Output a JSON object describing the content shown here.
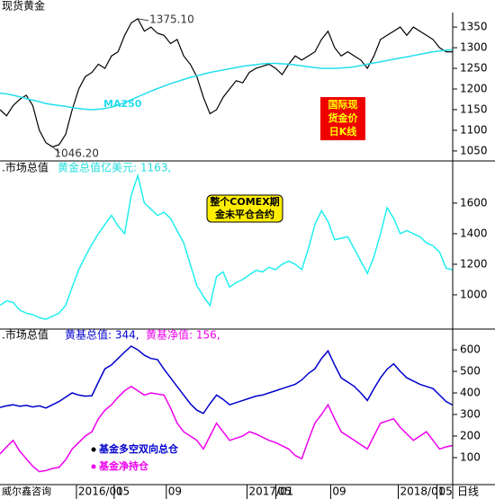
{
  "chart_data": [
    {
      "type": "line",
      "title": "现货黄金",
      "xlim": [
        0,
        138
      ],
      "ylim": [
        1028,
        1385
      ],
      "yticks": [
        1050,
        1100,
        1150,
        1200,
        1250,
        1300,
        1350
      ],
      "x": [
        0,
        2,
        4,
        6,
        8,
        10,
        12,
        14,
        16,
        18,
        20,
        22,
        24,
        26,
        28,
        30,
        32,
        34,
        36,
        38,
        40,
        42,
        44,
        46,
        48,
        50,
        52,
        54,
        56,
        58,
        60,
        62,
        64,
        66,
        68,
        70,
        72,
        74,
        76,
        78,
        80,
        82,
        84,
        86,
        88,
        90,
        92,
        94,
        96,
        98,
        100,
        102,
        104,
        106,
        108,
        110,
        112,
        114,
        116,
        118,
        120,
        122,
        124,
        126,
        128,
        130,
        132,
        134,
        136,
        138
      ],
      "series": [
        {
          "name": "现货黄金",
          "color": "#000000",
          "values": [
            1150,
            1135,
            1160,
            1175,
            1185,
            1160,
            1100,
            1070,
            1060,
            1065,
            1090,
            1150,
            1200,
            1230,
            1240,
            1260,
            1250,
            1280,
            1290,
            1330,
            1360,
            1370,
            1340,
            1350,
            1335,
            1330,
            1310,
            1320,
            1280,
            1260,
            1230,
            1180,
            1140,
            1150,
            1180,
            1200,
            1220,
            1215,
            1240,
            1250,
            1255,
            1260,
            1250,
            1235,
            1260,
            1280,
            1270,
            1280,
            1290,
            1320,
            1340,
            1300,
            1280,
            1290,
            1280,
            1270,
            1250,
            1280,
            1320,
            1330,
            1340,
            1350,
            1330,
            1350,
            1340,
            1330,
            1320,
            1300,
            1290,
            1290
          ]
        },
        {
          "name": "MA250",
          "color": "#22ddee",
          "values": [
            1190,
            1188,
            1185,
            1181,
            1177,
            1173,
            1169,
            1165,
            1162,
            1160,
            1158,
            1155,
            1153,
            1151,
            1150,
            1151,
            1153,
            1156,
            1161,
            1167,
            1174,
            1181,
            1188,
            1195,
            1201,
            1207,
            1213,
            1218,
            1223,
            1228,
            1232,
            1236,
            1240,
            1243,
            1246,
            1249,
            1252,
            1255,
            1257,
            1259,
            1261,
            1262,
            1262,
            1261,
            1260,
            1258,
            1256,
            1254,
            1252,
            1250,
            1250,
            1250,
            1251,
            1252,
            1254,
            1257,
            1260,
            1263,
            1266,
            1269,
            1272,
            1275,
            1278,
            1281,
            1284,
            1287,
            1290,
            1292,
            1294,
            1295
          ]
        }
      ],
      "annotations": [
        "1375.10",
        "1046.20"
      ],
      "box_text": [
        "国际现",
        "货金价",
        "日K线"
      ]
    },
    {
      "type": "line",
      "title": ".市场总值",
      "subtitle": "黄金总值亿美元: 1163,",
      "xlim": [
        0,
        138
      ],
      "ylim": [
        782,
        1870
      ],
      "yticks": [
        1000,
        1200,
        1400,
        1600
      ],
      "x": [
        0,
        2,
        4,
        6,
        8,
        10,
        12,
        14,
        16,
        18,
        20,
        22,
        24,
        26,
        28,
        30,
        32,
        34,
        36,
        38,
        40,
        42,
        44,
        46,
        48,
        50,
        52,
        54,
        56,
        58,
        60,
        62,
        64,
        66,
        68,
        70,
        72,
        74,
        76,
        78,
        80,
        82,
        84,
        86,
        88,
        90,
        92,
        94,
        96,
        98,
        100,
        102,
        104,
        106,
        108,
        110,
        112,
        114,
        116,
        118,
        120,
        122,
        124,
        126,
        128,
        130,
        132,
        134,
        136,
        138
      ],
      "series": [
        {
          "name": "黄金总值亿美元",
          "color": "#22eeee",
          "values": [
            930,
            960,
            950,
            900,
            880,
            870,
            850,
            840,
            860,
            880,
            930,
            1050,
            1165,
            1250,
            1330,
            1400,
            1460,
            1520,
            1450,
            1400,
            1650,
            1780,
            1600,
            1560,
            1520,
            1540,
            1500,
            1420,
            1340,
            1200,
            1060,
            990,
            930,
            1120,
            1150,
            1050,
            1080,
            1100,
            1130,
            1160,
            1150,
            1180,
            1165,
            1200,
            1220,
            1200,
            1165,
            1300,
            1460,
            1550,
            1480,
            1360,
            1370,
            1380,
            1300,
            1220,
            1140,
            1250,
            1400,
            1570,
            1500,
            1400,
            1420,
            1400,
            1380,
            1340,
            1320,
            1280,
            1175,
            1163
          ]
        }
      ],
      "box_text": [
        "整个COMEX期",
        "金未平仓合约"
      ]
    },
    {
      "type": "line",
      "title": ".市场总值",
      "header_labels": [
        "黄基总值: 344,",
        "黄基净值: 156,"
      ],
      "xlim": [
        0,
        138
      ],
      "ylim": [
        -21,
        692
      ],
      "yticks": [
        100,
        200,
        300,
        400,
        500,
        600
      ],
      "xticks": [
        {
          "value": 23.3,
          "label": "2016/01"
        },
        {
          "value": 34.8,
          "label": "05"
        },
        {
          "value": 50.7,
          "label": "09"
        },
        {
          "value": 75.3,
          "label": "2017/01"
        },
        {
          "value": 84.1,
          "label": "05"
        },
        {
          "value": 100.8,
          "label": "09"
        },
        {
          "value": 121.4,
          "label": "2018/01"
        },
        {
          "value": 133.2,
          "label": "05"
        }
      ],
      "x_label": "日线",
      "source": "威尔鑫咨询",
      "x": [
        0,
        2,
        4,
        6,
        8,
        10,
        12,
        14,
        16,
        18,
        20,
        22,
        24,
        26,
        28,
        30,
        32,
        34,
        36,
        38,
        40,
        42,
        44,
        46,
        48,
        50,
        52,
        54,
        56,
        58,
        60,
        62,
        64,
        66,
        68,
        70,
        72,
        74,
        76,
        78,
        80,
        82,
        84,
        86,
        88,
        90,
        92,
        94,
        96,
        98,
        100,
        102,
        104,
        106,
        108,
        110,
        112,
        114,
        116,
        118,
        120,
        122,
        124,
        126,
        128,
        130,
        132,
        134,
        136,
        138
      ],
      "series": [
        {
          "name": "基金多空双向总仓",
          "color": "#0000cc",
          "values": [
            333,
            340,
            345,
            338,
            342,
            335,
            340,
            330,
            345,
            360,
            380,
            400,
            390,
            385,
            387,
            450,
            512,
            530,
            560,
            590,
            617,
            600,
            575,
            560,
            555,
            510,
            470,
            430,
            390,
            350,
            320,
            305,
            350,
            390,
            370,
            345,
            355,
            365,
            375,
            385,
            390,
            400,
            410,
            420,
            430,
            440,
            460,
            490,
            512,
            560,
            595,
            530,
            470,
            450,
            430,
            400,
            365,
            420,
            470,
            510,
            535,
            500,
            470,
            455,
            440,
            430,
            420,
            390,
            360,
            344
          ]
        },
        {
          "name": "基金净持仓",
          "color": "#ee00ee",
          "values": [
            117,
            150,
            180,
            130,
            95,
            60,
            35,
            40,
            50,
            55,
            90,
            140,
            170,
            200,
            220,
            280,
            320,
            345,
            380,
            410,
            430,
            410,
            390,
            400,
            395,
            390,
            330,
            260,
            220,
            200,
            180,
            140,
            200,
            260,
            220,
            180,
            190,
            200,
            220,
            210,
            195,
            180,
            170,
            155,
            140,
            110,
            95,
            180,
            260,
            300,
            345,
            280,
            220,
            200,
            180,
            160,
            140,
            200,
            260,
            270,
            280,
            240,
            210,
            180,
            200,
            220,
            180,
            140,
            150,
            156
          ]
        }
      ]
    }
  ]
}
